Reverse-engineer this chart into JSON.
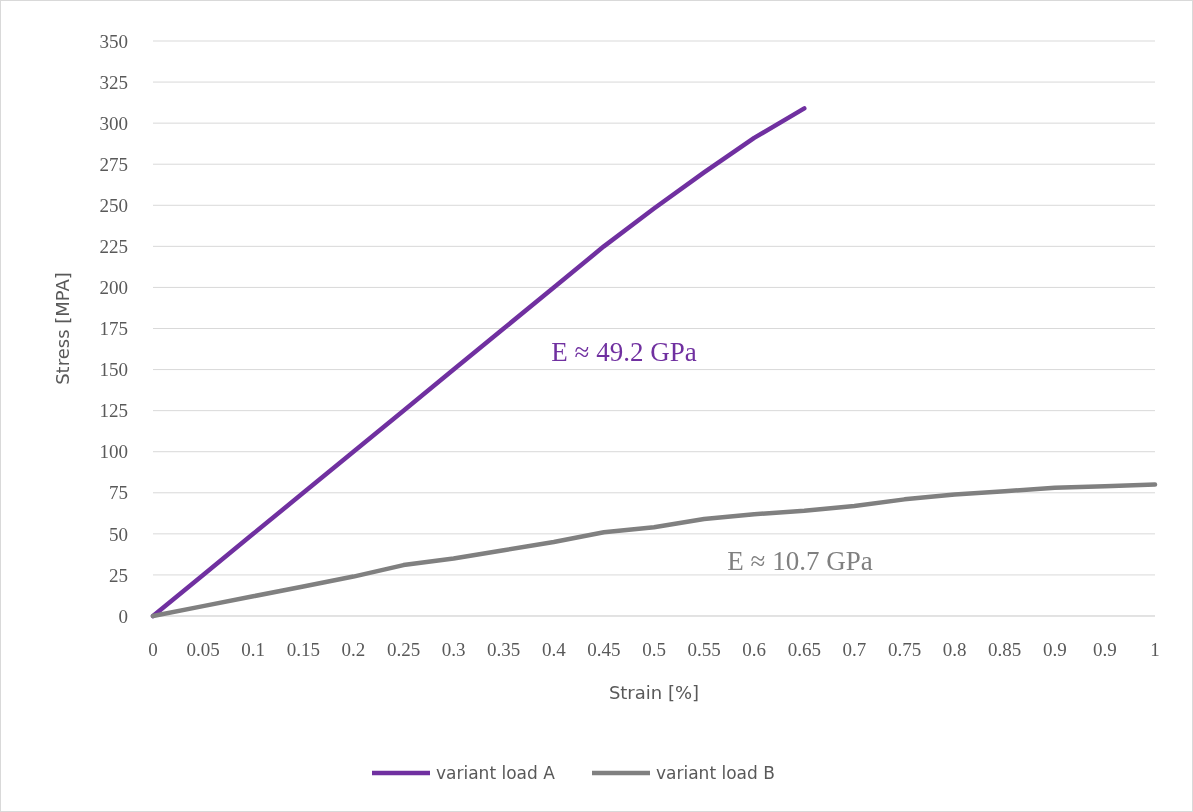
{
  "chart_data": {
    "type": "line",
    "xlabel": "Strain [%]",
    "ylabel": "Stress [MPA]",
    "categories": [
      "0",
      "0.05",
      "0.1",
      "0.15",
      "0.2",
      "0.25",
      "0.3",
      "0.35",
      "0.4",
      "0.45",
      "0.5",
      "0.55",
      "0.6",
      "0.65",
      "0.7",
      "0.75",
      "0.8",
      "0.85",
      "0.9",
      "0.9",
      "1"
    ],
    "series": [
      {
        "name": "variant load A",
        "color": "#7030a0",
        "values": [
          0,
          25,
          50,
          75,
          100,
          125,
          150,
          175,
          200,
          225,
          248,
          270,
          291,
          309,
          null,
          null,
          null,
          null,
          null,
          null,
          null
        ]
      },
      {
        "name": "variant load B",
        "color": "#808080",
        "values": [
          0,
          6,
          12,
          18,
          24,
          31,
          35,
          40,
          45,
          51,
          54,
          59,
          62,
          64,
          67,
          71,
          74,
          76,
          78,
          79,
          80
        ]
      }
    ],
    "ylim": [
      0,
      350
    ],
    "yticks": [
      0,
      25,
      50,
      75,
      100,
      125,
      150,
      175,
      200,
      225,
      250,
      275,
      300,
      325,
      350
    ],
    "grid": "y",
    "legend": "bottom",
    "marker": "none",
    "line_style": "solid",
    "annotations": [
      "E ≈ 49.2 GPa",
      "E ≈ 10.7 GPa"
    ]
  }
}
